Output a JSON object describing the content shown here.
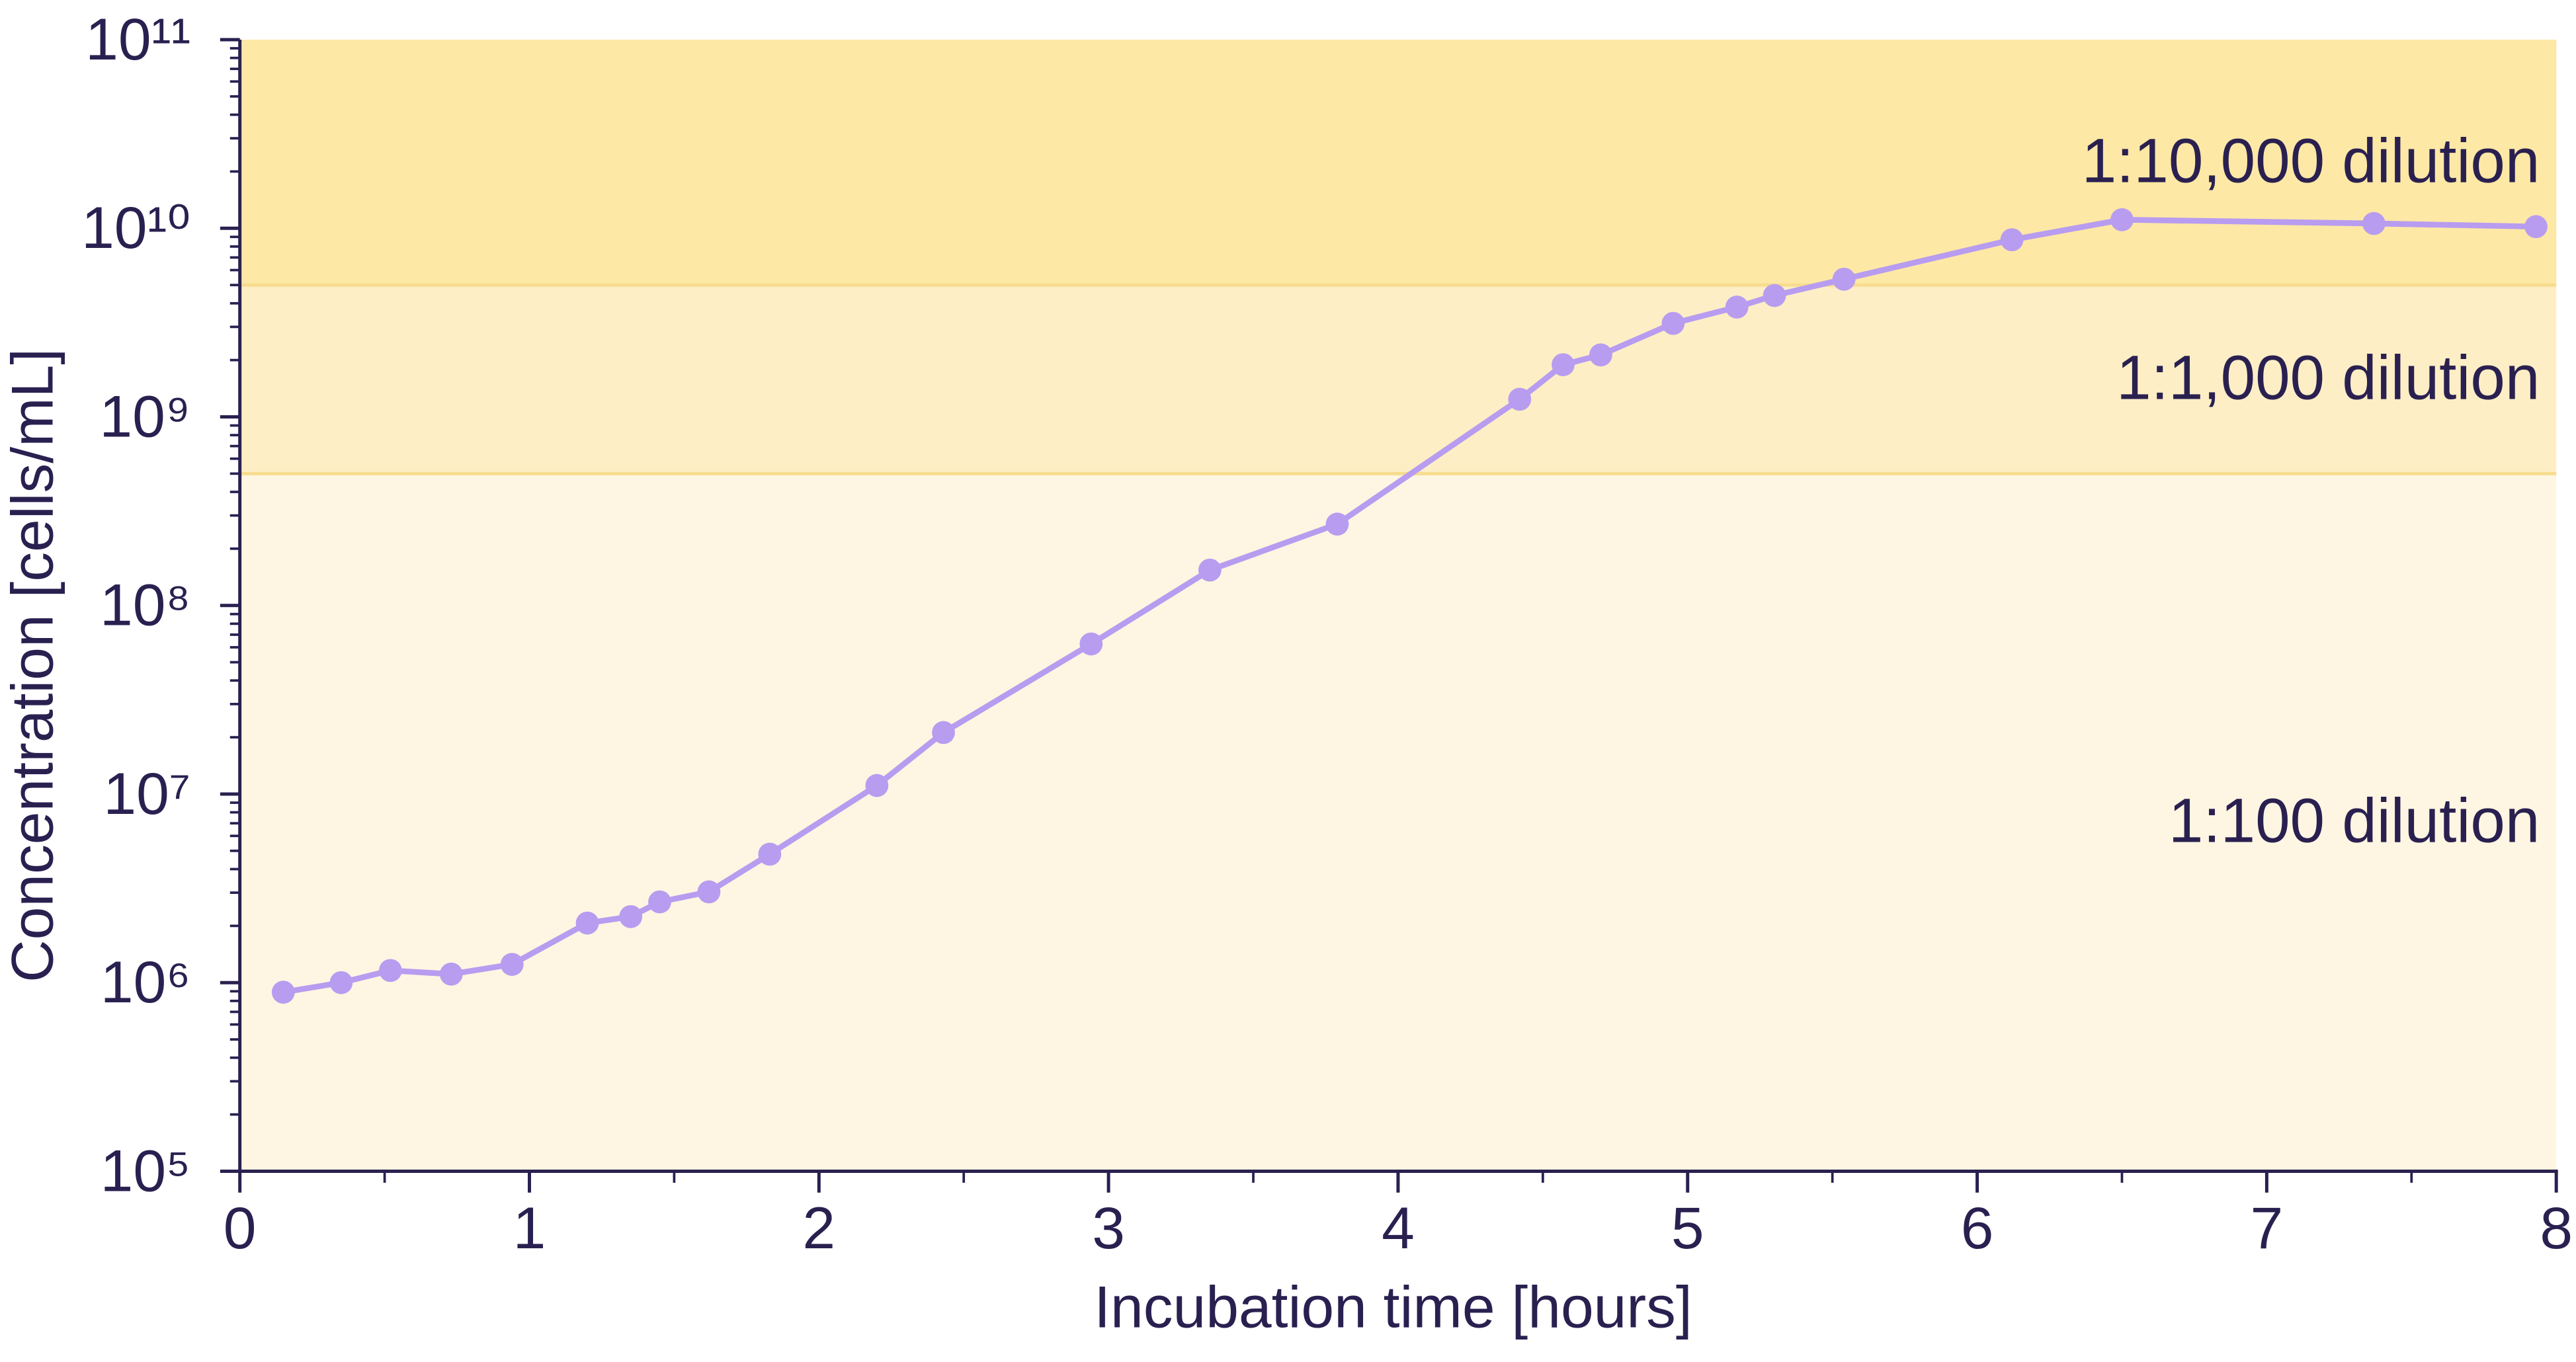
{
  "chart_data": {
    "type": "line",
    "xlabel": "Incubation time [hours]",
    "ylabel": "Concentration [cells/mL]",
    "log_y": true,
    "xlim": [
      0,
      8
    ],
    "xticks": [
      0,
      1,
      2,
      3,
      4,
      5,
      6,
      7,
      8
    ],
    "ylim": [
      100000,
      100000000000
    ],
    "yticks": [
      {
        "value": 100000,
        "label": "10⁵"
      },
      {
        "value": 1000000,
        "label": "10⁶"
      },
      {
        "value": 10000000,
        "label": "10⁷"
      },
      {
        "value": 100000000,
        "label": "10⁸"
      },
      {
        "value": 1000000000,
        "label": "10⁹"
      },
      {
        "value": 10000000000,
        "label": "10¹⁰"
      },
      {
        "value": 100000000000,
        "label": "10¹¹"
      }
    ],
    "bands": [
      {
        "label": "1:100 dilution",
        "from": 100000,
        "to": 500000000,
        "color": "#fef6e2"
      },
      {
        "label": "1:1,000 dilution",
        "from": 500000000,
        "to": 5000000000,
        "color": "#fdeec6"
      },
      {
        "label": "1:10,000 dilution",
        "from": 5000000000,
        "to": 100000000000,
        "color": "#fde8a6"
      }
    ],
    "series": [
      {
        "color": "#b89cf0",
        "x": [
          0.15,
          0.35,
          0.52,
          0.73,
          0.94,
          1.2,
          1.35,
          1.45,
          1.62,
          1.83,
          2.2,
          2.43,
          2.94,
          3.35,
          3.79,
          4.42,
          4.57,
          4.7,
          4.95,
          5.17,
          5.3,
          5.54,
          6.12,
          6.5,
          7.37,
          7.93
        ],
        "values": [
          890000,
          1000000,
          1160000,
          1110000,
          1250000,
          2070000,
          2240000,
          2680000,
          3030000,
          4800000,
          11100000,
          21200000,
          62500000,
          154000000,
          270000000,
          1240000000,
          1890000000,
          2130000000,
          3130000000,
          3820000000,
          4400000000,
          5370000000,
          8690000000,
          11100000000,
          10600000000,
          10200000000
        ]
      }
    ]
  }
}
